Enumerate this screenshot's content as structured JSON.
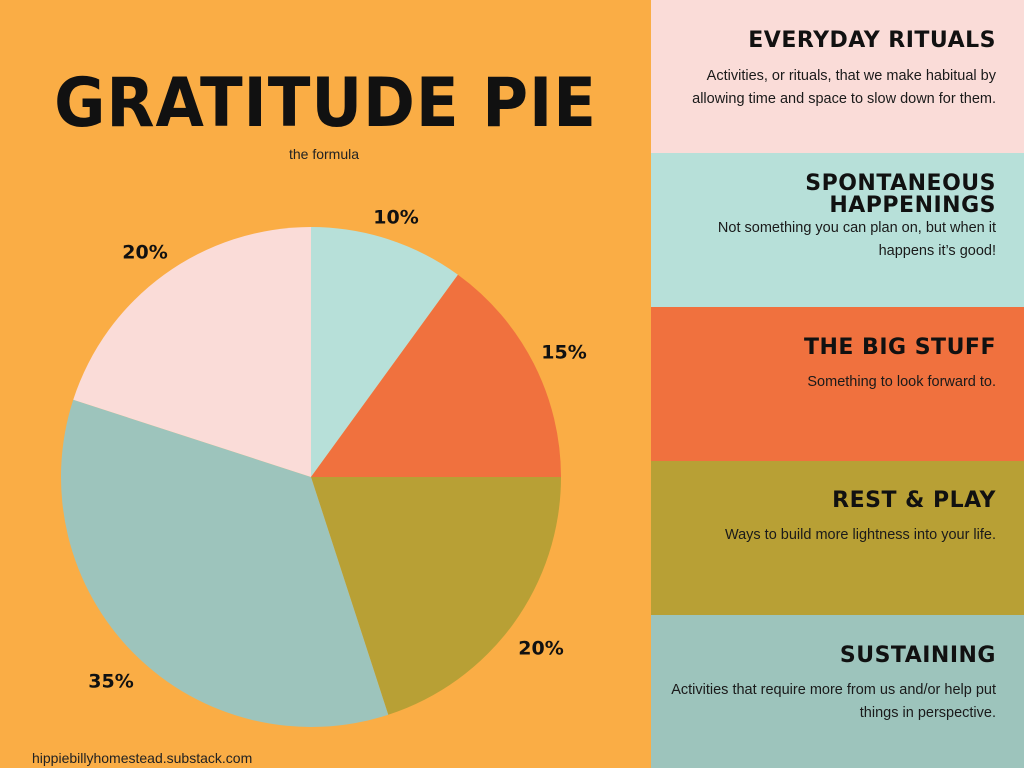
{
  "title": "GRATITUDE PIE",
  "subtitle": "the formula",
  "footer": "hippiebillyhomestead.substack.com",
  "colors": {
    "background": "#FAAD45",
    "everyday_rituals": "#FADCD8",
    "spontaneous_happenings": "#B7E0D9",
    "big_stuff": "#F0713E",
    "rest_play": "#B8A035",
    "sustaining": "#9DC4BC"
  },
  "legend": [
    {
      "title": "EVERYDAY RITUALS",
      "description": "Activities, or rituals, that we make habitual by allowing time and space to slow down for them.",
      "color": "#FADCD8"
    },
    {
      "title": "SPONTANEOUS HAPPENINGS",
      "description": "Not something you can plan on, but when it happens it’s good!",
      "color": "#B7E0D9"
    },
    {
      "title": "THE BIG STUFF",
      "description": "Something to look forward to.",
      "color": "#F0713E"
    },
    {
      "title": "REST & PLAY",
      "description": "Ways to build more lightness into your life.",
      "color": "#B8A035"
    },
    {
      "title": "SUSTAINING",
      "description": "Activities that require more from us and/or help put things in perspective.",
      "color": "#9DC4BC"
    }
  ],
  "chart_data": {
    "type": "pie",
    "title": "GRATITUDE PIE",
    "subtitle": "the formula",
    "slices": [
      {
        "label": "SPONTANEOUS HAPPENINGS",
        "value": 10,
        "display": "10%",
        "color": "#B7E0D9"
      },
      {
        "label": "THE BIG STUFF",
        "value": 15,
        "display": "15%",
        "color": "#F0713E"
      },
      {
        "label": "REST & PLAY",
        "value": 20,
        "display": "20%",
        "color": "#B8A035"
      },
      {
        "label": "SUSTAINING",
        "value": 35,
        "display": "35%",
        "color": "#9DC4BC"
      },
      {
        "label": "EVERYDAY RITUALS",
        "value": 20,
        "display": "20%",
        "color": "#FADCD8"
      }
    ]
  }
}
